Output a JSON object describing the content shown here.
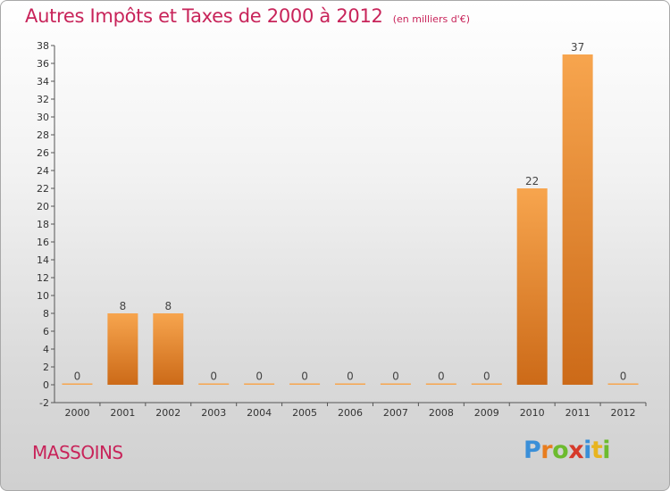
{
  "title": "Autres Impôts et Taxes de 2000 à 2012",
  "subtitle": "(en milliers d'€)",
  "commune": "MASSOINS",
  "logo": {
    "letters": [
      "P",
      "r",
      "o",
      "x",
      "i",
      "t",
      "i"
    ],
    "colors": [
      "#3a8fd8",
      "#e87d1e",
      "#6dbb2e",
      "#d63a2a",
      "#3a8fd8",
      "#e8b41e",
      "#6dbb2e"
    ]
  },
  "colors": {
    "bar_top": "#f7a54e",
    "bar_bottom": "#cc6a18",
    "title": "#c8245a"
  },
  "chart_data": {
    "type": "bar",
    "title": "Autres Impôts et Taxes de 2000 à 2012",
    "subtitle": "(en milliers d'€)",
    "categories": [
      "2000",
      "2001",
      "2002",
      "2003",
      "2004",
      "2005",
      "2006",
      "2007",
      "2008",
      "2009",
      "2010",
      "2011",
      "2012"
    ],
    "values": [
      0,
      8,
      8,
      0,
      0,
      0,
      0,
      0,
      0,
      0,
      22,
      37,
      0
    ],
    "data_labels": [
      "0",
      "8",
      "8",
      "0",
      "0",
      "0",
      "0",
      "0",
      "0",
      "0",
      "22",
      "37",
      "0"
    ],
    "ylim": [
      -2,
      38
    ],
    "yticks": [
      -2,
      0,
      2,
      4,
      6,
      8,
      10,
      12,
      14,
      16,
      18,
      20,
      22,
      24,
      26,
      28,
      30,
      32,
      34,
      36,
      38
    ],
    "ytick_labels": [
      "-2",
      "0",
      "2",
      "4",
      "6",
      "8",
      "10",
      "12",
      "14",
      "16",
      "18",
      "20",
      "22",
      "24",
      "26",
      "28",
      "30",
      "32",
      "34",
      "36",
      "38"
    ],
    "grid": false,
    "legend": "none"
  }
}
